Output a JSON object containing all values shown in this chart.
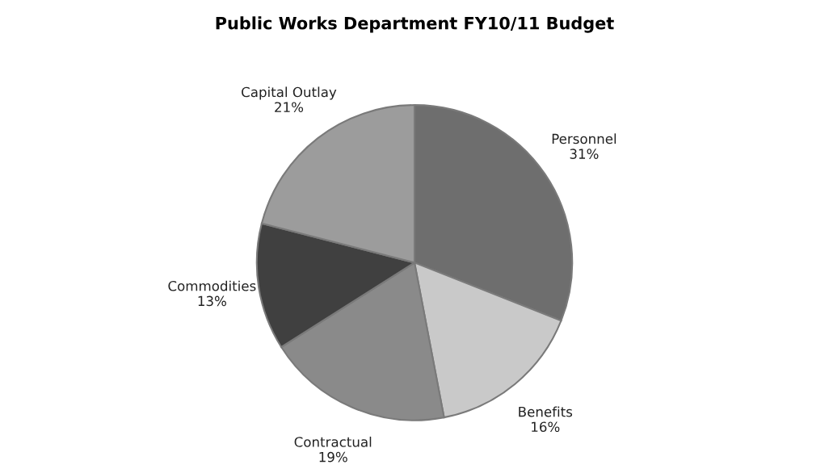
{
  "chart_data": {
    "type": "pie",
    "title": "Public Works Department FY10/11 Budget",
    "categories": [
      "Personnel",
      "Benefits",
      "Contractual",
      "Commodities",
      "Capital Outlay"
    ],
    "values": [
      31,
      16,
      19,
      13,
      21
    ],
    "value_labels": [
      "31%",
      "16%",
      "19%",
      "13%",
      "21%"
    ],
    "colors": [
      "#6e6e6e",
      "#c9c9c9",
      "#8a8a8a",
      "#404040",
      "#9c9c9c"
    ]
  }
}
